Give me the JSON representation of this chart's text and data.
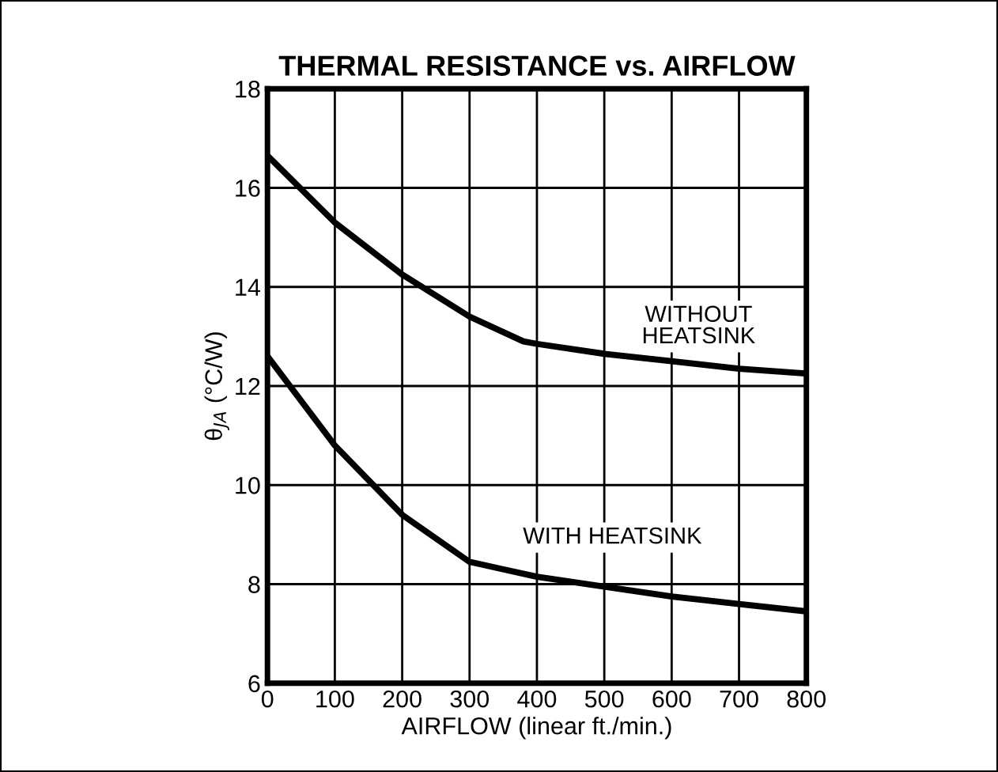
{
  "chart_data": {
    "type": "line",
    "title": "THERMAL RESISTANCE vs. AIRFLOW",
    "xlabel": "AIRFLOW (linear ft./min.)",
    "ylabel": "θ$_{JA}$ (°C/W)",
    "series": [
      {
        "name": "WITHOUT\nHEATSINK",
        "color": "#000000",
        "x": [
          0,
          100,
          200,
          300,
          380,
          400,
          500,
          600,
          700,
          800
        ],
        "values": [
          16.65,
          15.3,
          14.25,
          13.4,
          12.9,
          12.85,
          12.65,
          12.5,
          12.35,
          12.25
        ]
      },
      {
        "name": "WITH HEATSINK",
        "color": "#000000",
        "x": [
          0,
          100,
          150,
          200,
          300,
          350,
          400,
          500,
          600,
          700,
          800
        ],
        "values": [
          12.6,
          10.8,
          10.1,
          9.4,
          8.45,
          8.3,
          8.15,
          7.95,
          7.75,
          7.6,
          7.45
        ]
      }
    ],
    "xlim": [
      0,
      800
    ],
    "xticks": [
      0,
      100,
      200,
      300,
      400,
      500,
      600,
      700,
      800
    ],
    "ylim": [
      6,
      18
    ],
    "yticks": [
      6,
      8,
      10,
      12,
      14,
      16,
      18
    ],
    "grid": true,
    "legend": false,
    "marker": "none",
    "line_style": "solid"
  }
}
